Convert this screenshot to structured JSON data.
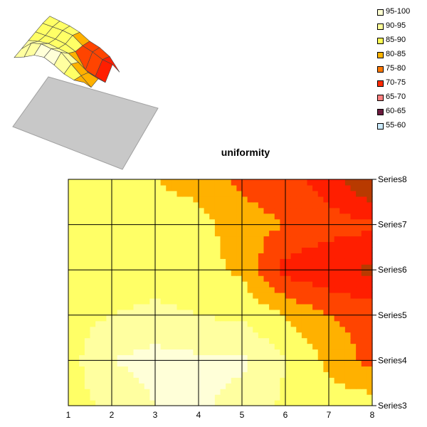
{
  "chart_data": {
    "type": "contour",
    "title": "uniformity",
    "x": [
      1,
      2,
      3,
      4,
      5,
      6,
      7,
      8
    ],
    "series_names": [
      "Series3",
      "Series4",
      "Series5",
      "Series6",
      "Series7",
      "Series8"
    ],
    "z": [
      [
        88,
        91,
        95,
        96,
        93,
        89,
        87,
        88
      ],
      [
        88,
        95,
        97,
        96,
        96,
        90,
        84,
        78
      ],
      [
        88,
        90,
        91,
        90,
        89,
        85,
        80,
        78
      ],
      [
        88,
        88,
        88,
        87,
        84,
        73,
        71,
        69
      ],
      [
        88,
        88,
        88,
        87,
        82,
        80,
        77,
        76
      ],
      [
        87,
        86,
        85,
        83,
        79,
        77,
        73,
        64
      ]
    ],
    "legend": [
      {
        "label": "95-100",
        "color": "#FFFFD2"
      },
      {
        "label": "90-95",
        "color": "#FFFF9A"
      },
      {
        "label": "85-90",
        "color": "#FFFF55"
      },
      {
        "label": "80-85",
        "color": "#FFB400"
      },
      {
        "label": "75-80",
        "color": "#FF7A00"
      },
      {
        "label": "70-75",
        "color": "#FF2A00"
      },
      {
        "label": "65-70",
        "color": "#FF8080"
      },
      {
        "label": "60-65",
        "color": "#6B1B3E"
      },
      {
        "label": "55-60",
        "color": "#CCECFF"
      }
    ],
    "band_colors": {
      "55": "#8B3A0A",
      "60": "#8B3A0A",
      "65": "#B83A00",
      "70": "#FF1E00",
      "75": "#FF4400",
      "80": "#FFB100",
      "85": "#FFFF66",
      "90": "#FFFFA0",
      "95": "#FFFFD8"
    },
    "legend_position": "top-right",
    "grid": true
  }
}
